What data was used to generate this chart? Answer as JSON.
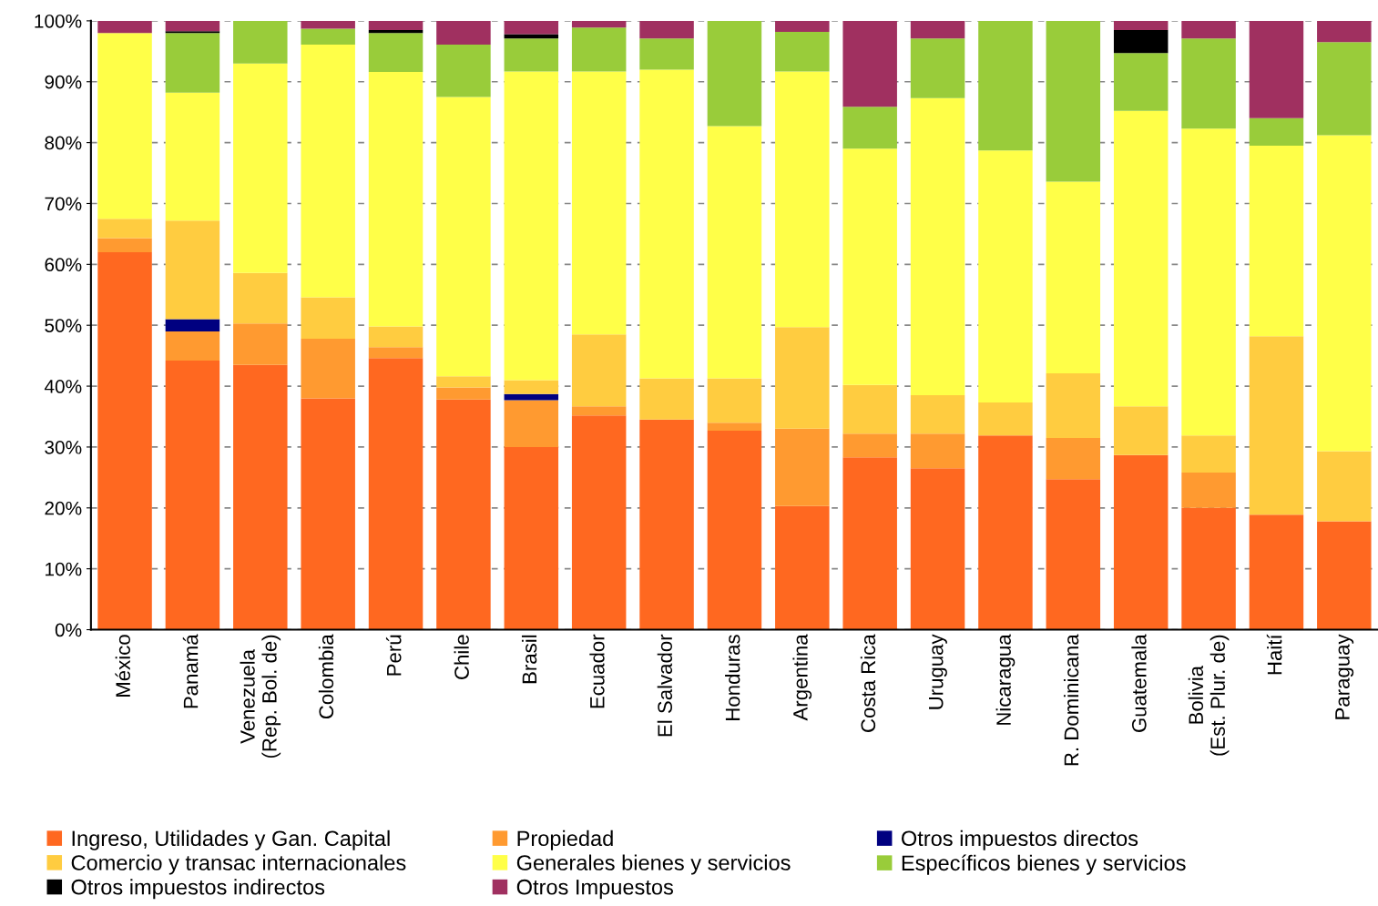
{
  "chart_data": {
    "type": "bar",
    "stacked": true,
    "categories": [
      "México",
      "Panamá",
      "Venezuela\n(Rep. Bol. de)",
      "Colombia",
      "Perú",
      "Chile",
      "Brasil",
      "Ecuador",
      "El Salvador",
      "Honduras",
      "Argentina",
      "Costa Rica",
      "Uruguay",
      "Nicaragua",
      "R. Dominicana",
      "Guatemala",
      "Bolivia\n(Est. Plur. de)",
      "Haití",
      "Paraguay"
    ],
    "ylim": [
      0,
      100
    ],
    "yticks": [
      {
        "value": 0,
        "label": "0%"
      },
      {
        "value": 10,
        "label": "10%"
      },
      {
        "value": 20,
        "label": "20%"
      },
      {
        "value": 30,
        "label": "30%"
      },
      {
        "value": 40,
        "label": "40%"
      },
      {
        "value": 50,
        "label": "50%"
      },
      {
        "value": 60,
        "label": "60%"
      },
      {
        "value": 70,
        "label": "70%"
      },
      {
        "value": 80,
        "label": "80%"
      },
      {
        "value": 90,
        "label": "90%"
      },
      {
        "value": 100,
        "label": "100%"
      }
    ],
    "grid": "y",
    "legend": "bottom",
    "series": [
      {
        "name": "Ingreso, Utilidades y Gan. Capital",
        "color": "#ff6820",
        "values": [
          62,
          44.2,
          43.5,
          38,
          44.6,
          37.8,
          30,
          35.2,
          34.5,
          32.7,
          20.3,
          28.3,
          26.5,
          31.9,
          24.7,
          28.7,
          20,
          18.9,
          17.8
        ]
      },
      {
        "name": "Propiedad",
        "color": "#ff9a30",
        "values": [
          2.3,
          4.8,
          6.8,
          9.8,
          1.8,
          2,
          7.7,
          1.5,
          0,
          1.3,
          12.7,
          3.9,
          5.7,
          0,
          6.8,
          0,
          5.8,
          0,
          0
        ]
      },
      {
        "name": "Otros impuestos directos",
        "color": "#000080",
        "values": [
          0,
          2,
          0,
          0,
          0,
          0,
          1,
          0,
          0,
          0,
          0,
          0,
          0,
          0,
          0,
          0,
          0,
          0,
          0
        ]
      },
      {
        "name": "Comercio y transac internacionales",
        "color": "#ffcc40",
        "values": [
          3.2,
          16.2,
          8.3,
          6.8,
          3.4,
          1.8,
          2.3,
          11.8,
          6.8,
          7.3,
          16.7,
          8,
          6.3,
          5.4,
          10.6,
          8,
          6.1,
          29.3,
          11.5
        ]
      },
      {
        "name": "Generales bienes y servicios",
        "color": "#ffff48",
        "values": [
          30.5,
          21,
          34.4,
          41.5,
          41.8,
          45.9,
          50.7,
          43.2,
          50.7,
          41.4,
          42,
          38.8,
          48.8,
          41.4,
          31.5,
          48.5,
          50.4,
          31.3,
          51.9
        ]
      },
      {
        "name": "Específicos bienes y servicios",
        "color": "#99cc3a",
        "values": [
          0,
          9.8,
          7,
          2.6,
          6.4,
          8.6,
          5.4,
          7.2,
          5.1,
          17.3,
          6.5,
          6.9,
          9.8,
          21.3,
          26.4,
          9.5,
          14.8,
          4.5,
          15.3
        ]
      },
      {
        "name": "Otros impuestos indirectos",
        "color": "#000000",
        "values": [
          0,
          0.3,
          0,
          0,
          0.5,
          0,
          0.7,
          0,
          0,
          0,
          0,
          0,
          0,
          0,
          0,
          3.8,
          0,
          0,
          0
        ]
      },
      {
        "name": "Otros Impuestos",
        "color": "#a03060",
        "values": [
          2,
          1.7,
          0,
          1.3,
          1.5,
          3.9,
          2.2,
          1.1,
          2.9,
          0,
          1.8,
          14.1,
          2.9,
          0,
          0,
          1.5,
          2.9,
          16,
          3.5
        ]
      }
    ]
  }
}
